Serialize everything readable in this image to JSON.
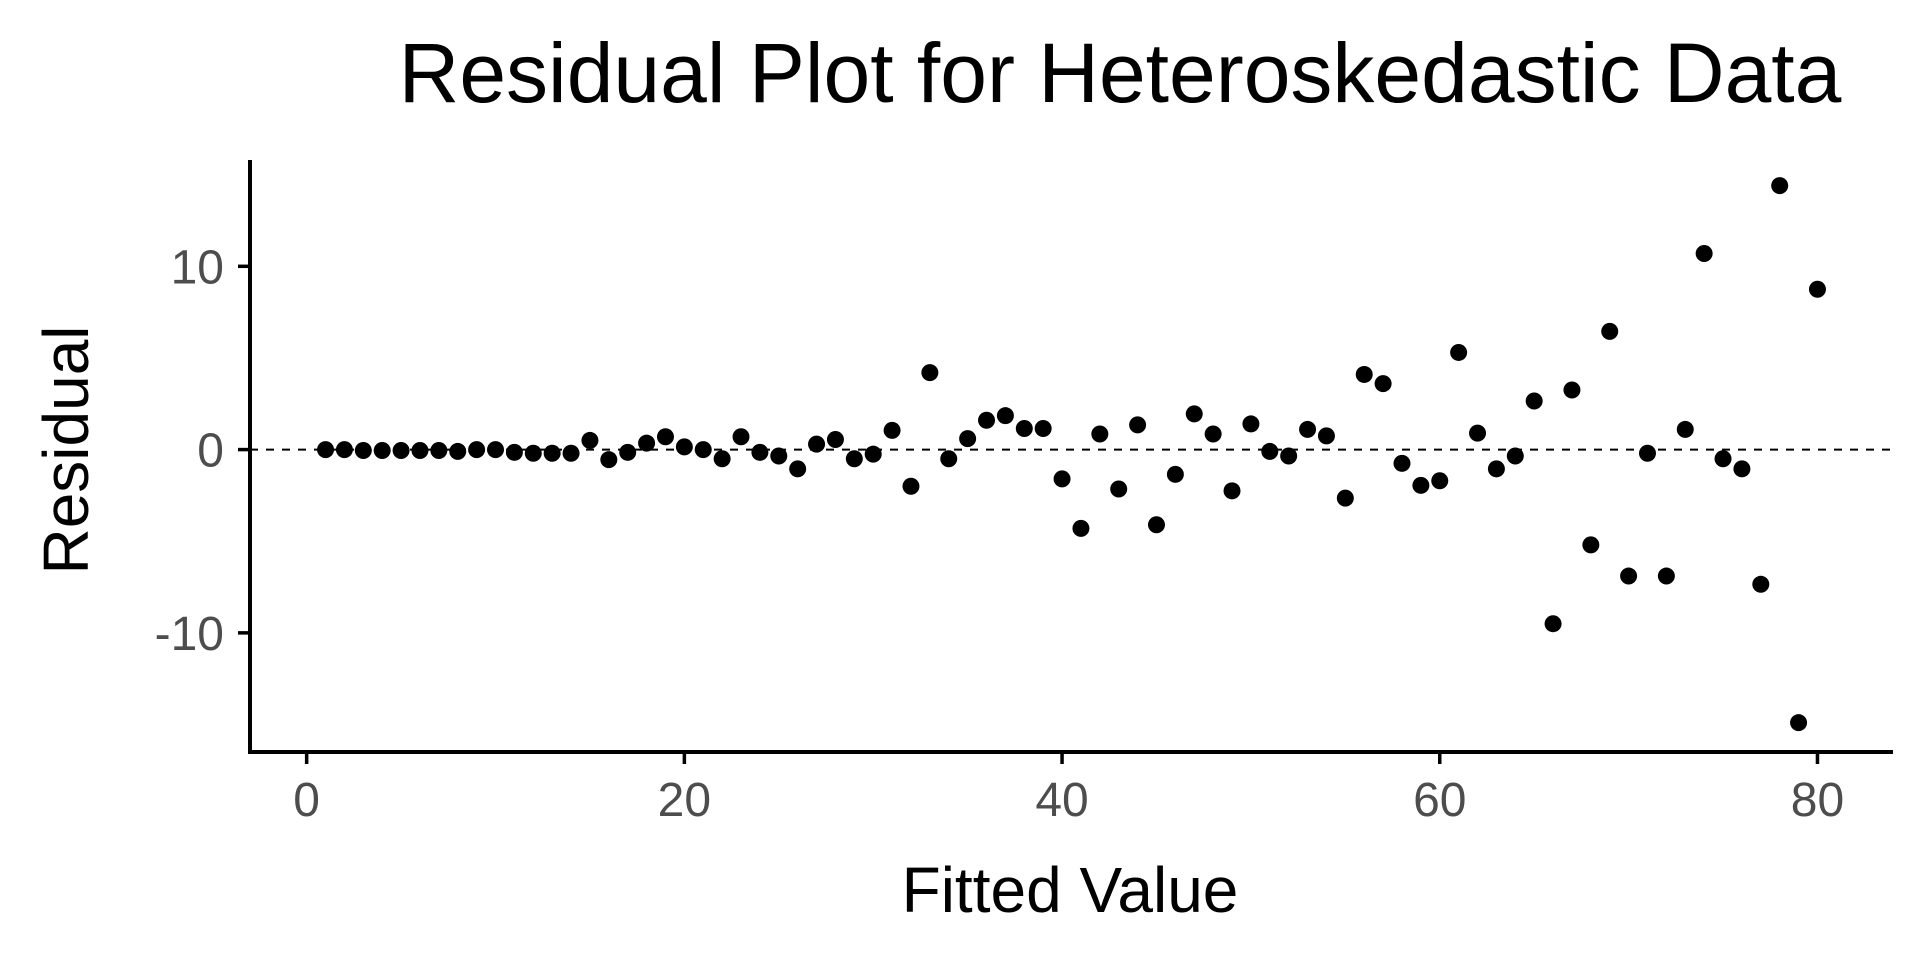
{
  "chart_data": {
    "type": "scatter",
    "title": "Residual Plot for Heteroskedastic Data",
    "xlabel": "Fitted Value",
    "ylabel": "Residual",
    "xlim": [
      -3,
      84
    ],
    "ylim": [
      -16.5,
      15.8
    ],
    "xticks": [
      0,
      20,
      40,
      60,
      80
    ],
    "xtick_labels": [
      "0",
      "20",
      "40",
      "60",
      "80"
    ],
    "yticks": [
      -10,
      0,
      10
    ],
    "ytick_labels": [
      "-10",
      "0",
      "10"
    ],
    "reference_line": {
      "y": 0,
      "style": "dashed"
    },
    "grid": false,
    "legend": "none",
    "point_color": "#000000",
    "tick_label_color": "#4d4d4d",
    "x": [
      1,
      2,
      3,
      4,
      5,
      6,
      7,
      8,
      9,
      10,
      11,
      12,
      13,
      14,
      15,
      16,
      17,
      18,
      19,
      20,
      21,
      22,
      23,
      24,
      25,
      26,
      27,
      28,
      29,
      30,
      31,
      32,
      33,
      34,
      35,
      36,
      37,
      38,
      39,
      40,
      41,
      42,
      43,
      44,
      45,
      46,
      47,
      48,
      49,
      50,
      51,
      52,
      53,
      54,
      55,
      56,
      57,
      58,
      59,
      60,
      61,
      62,
      63,
      64,
      65,
      66,
      67,
      68,
      69,
      70,
      71,
      72,
      73,
      74,
      75,
      76,
      77,
      78,
      79,
      80
    ],
    "y": [
      0.0,
      0.0,
      -0.05,
      -0.05,
      -0.05,
      -0.05,
      -0.05,
      -0.1,
      0.0,
      0.0,
      -0.15,
      -0.2,
      -0.2,
      -0.2,
      0.5,
      -0.55,
      -0.15,
      0.35,
      0.7,
      0.15,
      0.0,
      -0.5,
      0.7,
      -0.15,
      -0.35,
      -1.05,
      0.3,
      0.55,
      -0.5,
      -0.25,
      1.05,
      -2.0,
      4.2,
      -0.5,
      0.6,
      1.6,
      1.85,
      1.15,
      1.15,
      -1.6,
      -4.3,
      0.85,
      -2.15,
      1.35,
      -4.1,
      -1.35,
      1.95,
      0.85,
      -2.25,
      1.4,
      -0.1,
      -0.35,
      1.1,
      0.75,
      -2.65,
      4.1,
      3.6,
      -0.75,
      -1.95,
      -1.7,
      5.3,
      0.9,
      -1.05,
      -0.35,
      2.65,
      -9.5,
      3.25,
      -5.2,
      6.45,
      -6.9,
      -0.2,
      -6.9,
      1.1,
      10.7,
      -0.5,
      -1.05,
      -7.35,
      14.4,
      -14.9,
      8.75
    ]
  }
}
